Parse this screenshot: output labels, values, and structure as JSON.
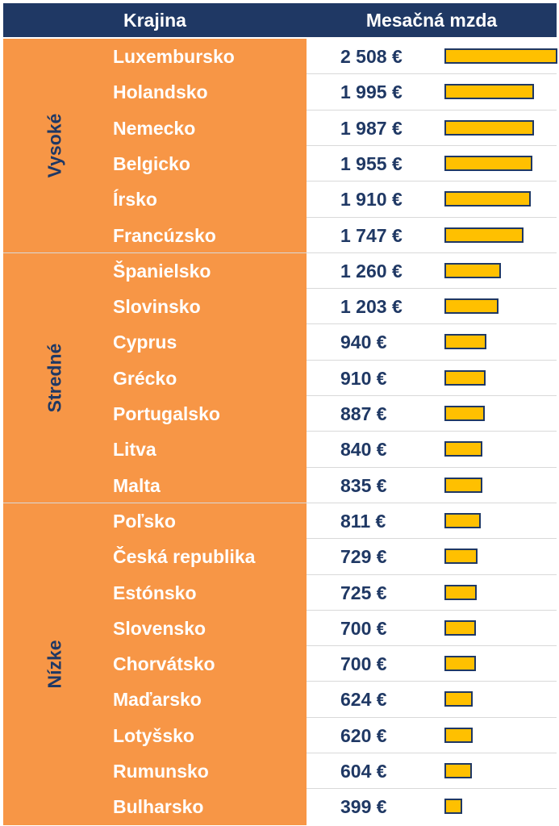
{
  "header": {
    "country_label": "Krajina",
    "wage_label": "Mesačná mzda"
  },
  "colors": {
    "header_bg": "#1F3864",
    "group_bg": "#F79646",
    "bar_fill": "#FFC000",
    "bar_border": "#1F3864",
    "wage_text": "#1F3864"
  },
  "chart_data": {
    "type": "table",
    "title": "",
    "columns": [
      "Krajina",
      "Mesačná mzda"
    ],
    "value_unit": "€",
    "groups": [
      {
        "name": "Vysoké",
        "rows": [
          {
            "country": "Luxembursko",
            "wage": 2508,
            "wage_label": "2 508 €"
          },
          {
            "country": "Holandsko",
            "wage": 1995,
            "wage_label": "1 995 €"
          },
          {
            "country": "Nemecko",
            "wage": 1987,
            "wage_label": "1 987 €"
          },
          {
            "country": "Belgicko",
            "wage": 1955,
            "wage_label": "1 955 €"
          },
          {
            "country": "Írsko",
            "wage": 1910,
            "wage_label": "1 910 €"
          },
          {
            "country": "Francúzsko",
            "wage": 1747,
            "wage_label": "1 747 €"
          }
        ]
      },
      {
        "name": "Stredné",
        "rows": [
          {
            "country": "Španielsko",
            "wage": 1260,
            "wage_label": "1 260 €"
          },
          {
            "country": "Slovinsko",
            "wage": 1203,
            "wage_label": "1 203 €"
          },
          {
            "country": "Cyprus",
            "wage": 940,
            "wage_label": "940 €"
          },
          {
            "country": "Grécko",
            "wage": 910,
            "wage_label": "910 €"
          },
          {
            "country": "Portugalsko",
            "wage": 887,
            "wage_label": "887 €"
          },
          {
            "country": "Litva",
            "wage": 840,
            "wage_label": "840 €"
          },
          {
            "country": "Malta",
            "wage": 835,
            "wage_label": "835 €"
          }
        ]
      },
      {
        "name": "Nízke",
        "rows": [
          {
            "country": "Poľsko",
            "wage": 811,
            "wage_label": "811 €"
          },
          {
            "country": "Česká republika",
            "wage": 729,
            "wage_label": "729 €"
          },
          {
            "country": "Estónsko",
            "wage": 725,
            "wage_label": "725 €"
          },
          {
            "country": "Slovensko",
            "wage": 700,
            "wage_label": "700 €"
          },
          {
            "country": "Chorvátsko",
            "wage": 700,
            "wage_label": "700 €"
          },
          {
            "country": "Maďarsko",
            "wage": 624,
            "wage_label": "624 €"
          },
          {
            "country": "Lotyšsko",
            "wage": 620,
            "wage_label": "620 €"
          },
          {
            "country": "Rumunsko",
            "wage": 604,
            "wage_label": "604 €"
          },
          {
            "country": "Bulharsko",
            "wage": 399,
            "wage_label": "399 €"
          }
        ]
      }
    ],
    "bar_max": 2508
  }
}
